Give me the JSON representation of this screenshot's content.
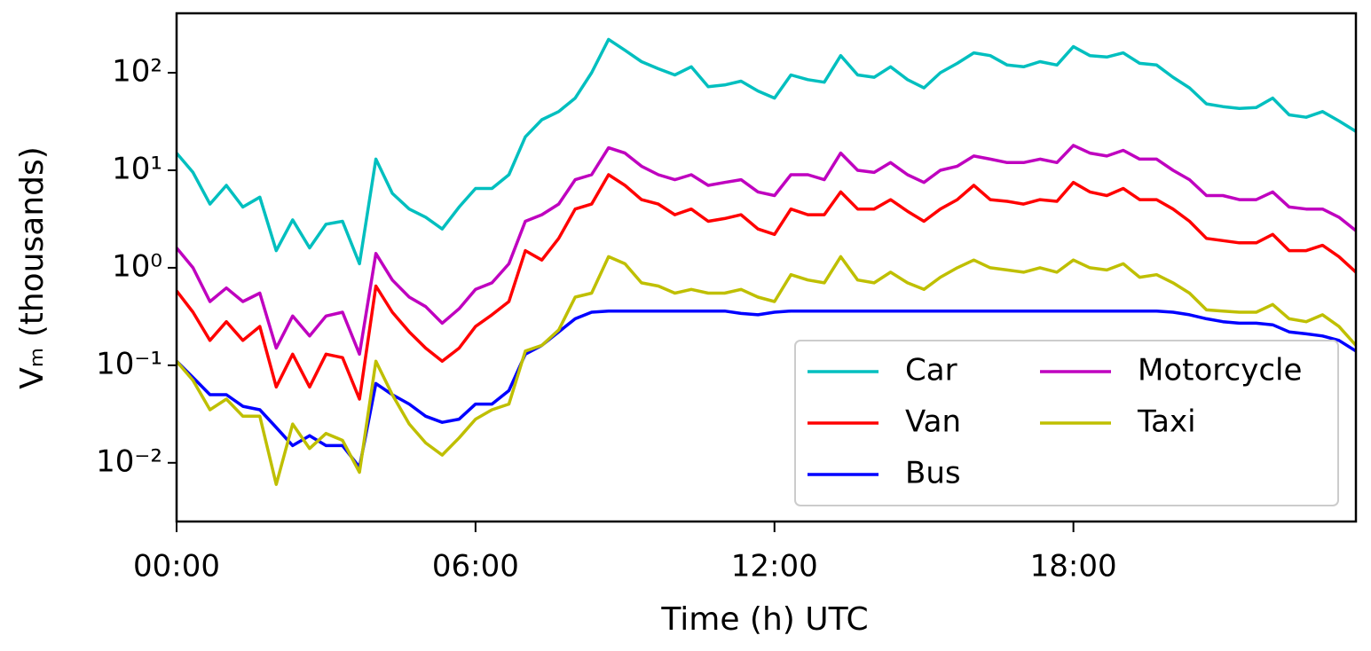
{
  "chart_data": {
    "type": "line",
    "ylabel": "Vₘ (thousands)",
    "xlabel": "Time (h) UTC",
    "x": [
      0,
      0.33,
      0.67,
      1,
      1.33,
      1.67,
      2,
      2.33,
      2.67,
      3,
      3.33,
      3.67,
      4,
      4.33,
      4.67,
      5,
      5.33,
      5.67,
      6,
      6.33,
      6.67,
      7,
      7.33,
      7.67,
      8,
      8.33,
      8.67,
      9,
      9.33,
      9.67,
      10,
      10.33,
      10.67,
      11,
      11.33,
      11.67,
      12,
      12.33,
      12.67,
      13,
      13.33,
      13.67,
      14,
      14.33,
      14.67,
      15,
      15.33,
      15.67,
      16,
      16.33,
      16.67,
      17,
      17.33,
      17.67,
      18,
      18.33,
      18.67,
      19,
      19.33,
      19.67,
      20,
      20.33,
      20.67,
      21,
      21.33,
      21.67,
      22,
      22.33,
      22.67,
      23,
      23.33,
      23.67
    ],
    "series": [
      {
        "name": "Car",
        "color": "#00bfbf",
        "values": [
          15,
          9.5,
          4.5,
          7,
          4.2,
          5.3,
          1.5,
          3.1,
          1.6,
          2.8,
          3.0,
          1.1,
          13,
          5.8,
          4.0,
          3.3,
          2.5,
          4.2,
          6.5,
          6.5,
          9,
          22,
          33,
          40,
          55,
          100,
          220,
          170,
          130,
          110,
          95,
          115,
          72,
          75,
          82,
          65,
          55,
          95,
          85,
          80,
          150,
          95,
          90,
          115,
          85,
          70,
          100,
          125,
          160,
          150,
          120,
          115,
          130,
          120,
          185,
          150,
          145,
          160,
          125,
          120,
          90,
          70,
          48,
          45,
          43,
          44,
          55,
          37,
          35,
          40,
          32,
          25
        ]
      },
      {
        "name": "Van",
        "color": "#ff0000",
        "values": [
          0.58,
          0.35,
          0.18,
          0.28,
          0.18,
          0.25,
          0.06,
          0.13,
          0.06,
          0.13,
          0.12,
          0.045,
          0.65,
          0.35,
          0.22,
          0.15,
          0.11,
          0.15,
          0.25,
          0.33,
          0.45,
          1.5,
          1.2,
          2,
          4,
          4.5,
          9,
          7,
          5,
          4.5,
          3.5,
          4,
          3,
          3.2,
          3.5,
          2.5,
          2.2,
          4,
          3.5,
          3.5,
          6,
          4,
          4,
          5,
          3.8,
          3,
          4,
          5,
          7,
          5,
          4.8,
          4.5,
          5,
          4.8,
          7.5,
          6,
          5.5,
          6.5,
          5,
          5,
          4,
          3,
          2,
          1.9,
          1.8,
          1.8,
          2.2,
          1.5,
          1.5,
          1.7,
          1.3,
          0.9
        ]
      },
      {
        "name": "Bus",
        "color": "#0000ff",
        "values": [
          0.11,
          0.075,
          0.05,
          0.05,
          0.038,
          0.035,
          0.023,
          0.015,
          0.019,
          0.015,
          0.015,
          0.009,
          0.065,
          0.05,
          0.04,
          0.03,
          0.026,
          0.028,
          0.04,
          0.04,
          0.055,
          0.13,
          0.16,
          0.22,
          0.3,
          0.35,
          0.36,
          0.36,
          0.36,
          0.36,
          0.36,
          0.36,
          0.36,
          0.36,
          0.34,
          0.33,
          0.35,
          0.36,
          0.36,
          0.36,
          0.36,
          0.36,
          0.36,
          0.36,
          0.36,
          0.36,
          0.36,
          0.36,
          0.36,
          0.36,
          0.36,
          0.36,
          0.36,
          0.36,
          0.36,
          0.36,
          0.36,
          0.36,
          0.36,
          0.36,
          0.35,
          0.33,
          0.3,
          0.28,
          0.27,
          0.27,
          0.26,
          0.22,
          0.21,
          0.2,
          0.18,
          0.14
        ]
      },
      {
        "name": "Motorcycle",
        "color": "#bf00bf",
        "values": [
          1.6,
          1.0,
          0.45,
          0.62,
          0.45,
          0.55,
          0.15,
          0.32,
          0.2,
          0.32,
          0.35,
          0.13,
          1.4,
          0.75,
          0.5,
          0.4,
          0.27,
          0.38,
          0.6,
          0.7,
          1.1,
          3.0,
          3.5,
          4.5,
          8,
          9,
          17,
          15,
          11,
          9,
          8,
          9,
          7,
          7.5,
          8,
          6,
          5.5,
          9,
          9,
          8,
          15,
          10,
          9.5,
          12,
          9,
          7.5,
          10,
          11,
          14,
          13,
          12,
          12,
          13,
          12,
          18,
          15,
          14,
          16,
          13,
          13,
          10,
          8,
          5.5,
          5.5,
          5,
          5,
          6,
          4.2,
          4,
          4,
          3.3,
          2.4
        ]
      },
      {
        "name": "Taxi",
        "color": "#bfbf00",
        "values": [
          0.11,
          0.07,
          0.035,
          0.045,
          0.03,
          0.03,
          0.006,
          0.025,
          0.014,
          0.02,
          0.017,
          0.008,
          0.11,
          0.05,
          0.025,
          0.016,
          0.012,
          0.018,
          0.028,
          0.035,
          0.04,
          0.14,
          0.16,
          0.23,
          0.5,
          0.55,
          1.3,
          1.1,
          0.7,
          0.65,
          0.55,
          0.6,
          0.55,
          0.55,
          0.6,
          0.5,
          0.45,
          0.85,
          0.75,
          0.7,
          1.3,
          0.75,
          0.7,
          0.9,
          0.7,
          0.6,
          0.8,
          1.0,
          1.2,
          1.0,
          0.95,
          0.9,
          1.0,
          0.9,
          1.2,
          1.0,
          0.95,
          1.1,
          0.8,
          0.85,
          0.7,
          0.55,
          0.37,
          0.36,
          0.35,
          0.35,
          0.42,
          0.3,
          0.28,
          0.33,
          0.25,
          0.16
        ]
      }
    ],
    "xlim": [
      0,
      23.67
    ],
    "xticks": [
      {
        "value": 0,
        "label": "00:00"
      },
      {
        "value": 6,
        "label": "06:00"
      },
      {
        "value": 12,
        "label": "12:00"
      },
      {
        "value": 18,
        "label": "18:00"
      }
    ],
    "ylim": [
      0.0025,
      407
    ],
    "yscale": "log",
    "yticks": [
      {
        "value": 0.01,
        "label": "10⁻²"
      },
      {
        "value": 0.1,
        "label": "10⁻¹"
      },
      {
        "value": 1,
        "label": "10⁰"
      },
      {
        "value": 10,
        "label": "10¹"
      },
      {
        "value": 100,
        "label": "10²"
      }
    ],
    "legend": "lower right",
    "legend_columns": 2
  }
}
